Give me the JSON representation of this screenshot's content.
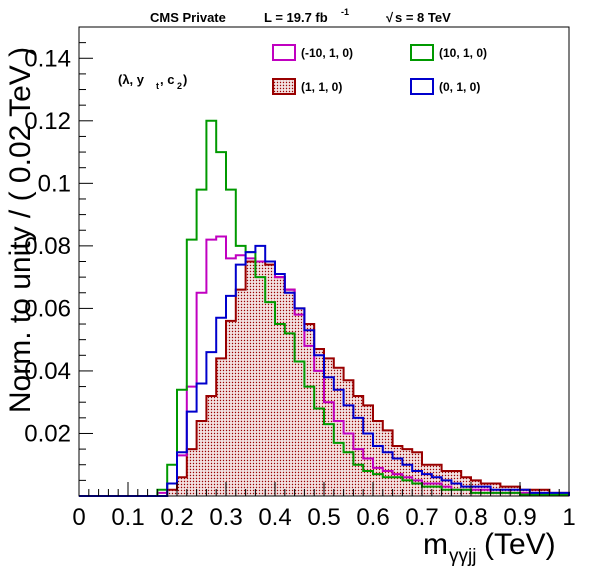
{
  "header": {
    "experiment": "CMS Private",
    "lumi_prefix": "L = 19.7 fb",
    "lumi_exp": "-1",
    "energy_sqrt": "√",
    "energy_rest": "s = 8 TeV"
  },
  "annotation": {
    "params_open": "(λ, y",
    "params_sub_t": "t",
    "params_mid": ", c",
    "params_sub_2": "2",
    "params_close": ")"
  },
  "colors": {
    "magenta": "#c000c0",
    "green": "#009900",
    "darkred": "#990000",
    "blue": "#0000cc",
    "fill": "#e8cfcf"
  },
  "chart_data": {
    "type": "histogram",
    "title": "",
    "xlabel_main": "m",
    "xlabel_sub": "γγjj",
    "xlabel_unit": " (TeV)",
    "ylabel": "Norm. to unity / ( 0.02 TeV )",
    "xlim": [
      0,
      1
    ],
    "ylim": [
      0,
      0.15
    ],
    "bin_width": 0.02,
    "x_ticks": [
      "0",
      "0.1",
      "0.2",
      "0.3",
      "0.4",
      "0.5",
      "0.6",
      "0.7",
      "0.8",
      "0.9",
      "1"
    ],
    "y_ticks": [
      "0.02",
      "0.04",
      "0.06",
      "0.08",
      "0.1",
      "0.12",
      "0.14"
    ],
    "legend_position": "top-right",
    "series": [
      {
        "name": "(-10, 1, 0)",
        "color": "magenta",
        "filled": false,
        "values": [
          0,
          0,
          0,
          0,
          0,
          0,
          0,
          0,
          0.001,
          0.004,
          0.013,
          0.035,
          0.065,
          0.082,
          0.083,
          0.076,
          0.077,
          0.076,
          0.075,
          0.075,
          0.07,
          0.066,
          0.058,
          0.048,
          0.04,
          0.03,
          0.024,
          0.02,
          0.015,
          0.012,
          0.009,
          0.008,
          0.007,
          0.006,
          0.005,
          0.004,
          0.004,
          0.003,
          0.002,
          0.002,
          0.002,
          0.002,
          0.001,
          0.001,
          0.001,
          0.001,
          0.001,
          0.0005,
          0.0005,
          0.0005
        ]
      },
      {
        "name": "(10, 1, 0)",
        "color": "green",
        "filled": false,
        "values": [
          0,
          0,
          0,
          0,
          0,
          0,
          0,
          0,
          0.002,
          0.01,
          0.034,
          0.082,
          0.098,
          0.12,
          0.11,
          0.098,
          0.08,
          0.078,
          0.07,
          0.062,
          0.055,
          0.052,
          0.043,
          0.035,
          0.028,
          0.023,
          0.017,
          0.014,
          0.01,
          0.008,
          0.007,
          0.006,
          0.006,
          0.005,
          0.004,
          0.003,
          0.003,
          0.002,
          0.002,
          0.002,
          0.001,
          0.001,
          0.001,
          0.001,
          0.001,
          0.0005,
          0.0005,
          0.0005,
          0.0005,
          0.0005
        ]
      },
      {
        "name": "(1, 1, 0)",
        "color": "darkred",
        "filled": true,
        "values": [
          0,
          0,
          0,
          0,
          0,
          0,
          0,
          0,
          0,
          0.002,
          0.006,
          0.015,
          0.024,
          0.032,
          0.044,
          0.056,
          0.066,
          0.075,
          0.075,
          0.074,
          0.07,
          0.066,
          0.06,
          0.055,
          0.047,
          0.044,
          0.041,
          0.037,
          0.032,
          0.029,
          0.024,
          0.021,
          0.016,
          0.015,
          0.014,
          0.01,
          0.01,
          0.008,
          0.008,
          0.006,
          0.005,
          0.004,
          0.004,
          0.003,
          0.003,
          0.002,
          0.002,
          0.002,
          0.001,
          0.001
        ]
      },
      {
        "name": "(0, 1, 0)",
        "color": "blue",
        "filled": false,
        "values": [
          0,
          0,
          0,
          0,
          0,
          0,
          0,
          0,
          0,
          0.004,
          0.014,
          0.027,
          0.036,
          0.046,
          0.057,
          0.064,
          0.074,
          0.078,
          0.08,
          0.075,
          0.071,
          0.065,
          0.06,
          0.053,
          0.045,
          0.038,
          0.034,
          0.029,
          0.025,
          0.02,
          0.016,
          0.014,
          0.012,
          0.01,
          0.008,
          0.007,
          0.006,
          0.005,
          0.004,
          0.003,
          0.003,
          0.003,
          0.002,
          0.002,
          0.002,
          0.002,
          0.001,
          0.001,
          0.001,
          0.001
        ]
      }
    ]
  }
}
